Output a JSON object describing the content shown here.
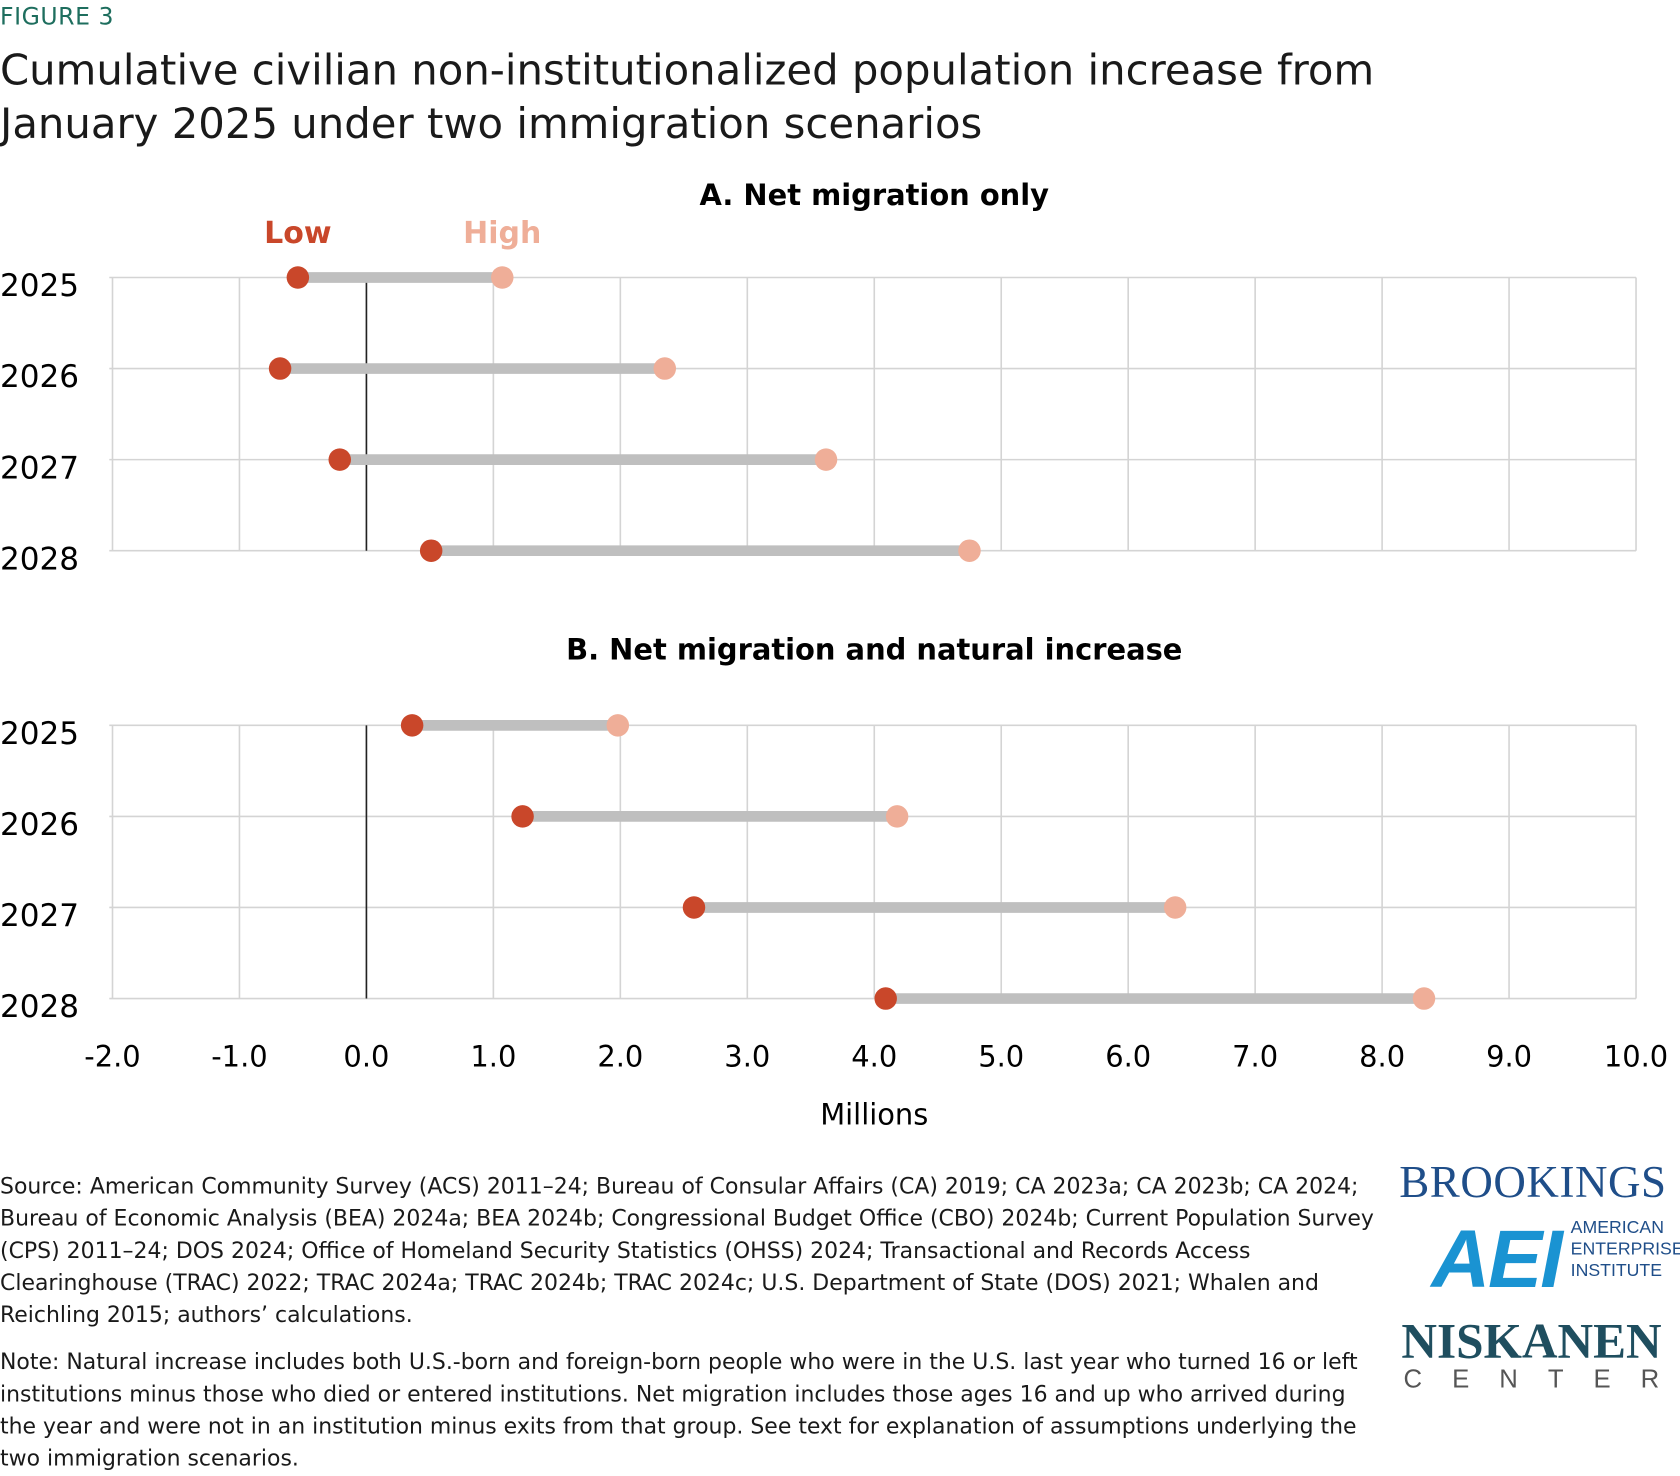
{
  "figure_label": "FIGURE 3",
  "title": "Cumulative civilian non-institutionalized population increase from January 2025 under two immigration scenarios",
  "chart_data": [
    {
      "type": "dumbbell",
      "title": "A. Net migration only",
      "categories": [
        "2025",
        "2026",
        "2027",
        "2028"
      ],
      "series": [
        {
          "name": "Low",
          "color": "#c9472a",
          "values": [
            -0.54,
            -0.68,
            -0.21,
            0.51
          ]
        },
        {
          "name": "High",
          "color": "#efae98",
          "values": [
            1.07,
            2.35,
            3.62,
            4.75
          ]
        }
      ],
      "xlim": [
        -2,
        10
      ],
      "xticks": [
        {
          "value": -2,
          "label": "-2.0"
        },
        {
          "value": -1,
          "label": "-1.0"
        },
        {
          "value": 0,
          "label": "0.0"
        },
        {
          "value": 1,
          "label": "1.0"
        },
        {
          "value": 2,
          "label": "2.0"
        },
        {
          "value": 3,
          "label": "3.0"
        },
        {
          "value": 4,
          "label": "4.0"
        },
        {
          "value": 5,
          "label": "5.0"
        },
        {
          "value": 6,
          "label": "6.0"
        },
        {
          "value": 7,
          "label": "7.0"
        },
        {
          "value": 8,
          "label": "8.0"
        },
        {
          "value": 9,
          "label": "9.0"
        },
        {
          "value": 10,
          "label": "10.0"
        }
      ],
      "grid": true
    },
    {
      "type": "dumbbell",
      "title": "B. Net migration and natural increase",
      "categories": [
        "2025",
        "2026",
        "2027",
        "2028"
      ],
      "series": [
        {
          "color": "#c9472a",
          "values": [
            0.36,
            1.23,
            2.58,
            4.09
          ]
        },
        {
          "color": "#efae98",
          "values": [
            1.98,
            4.18,
            6.37,
            8.33
          ]
        }
      ],
      "xlim": [
        -2,
        10
      ],
      "xticks": [
        {
          "value": -2,
          "label": "-2.0"
        },
        {
          "value": -1,
          "label": "-1.0"
        },
        {
          "value": 0,
          "label": "0.0"
        },
        {
          "value": 1,
          "label": "1.0"
        },
        {
          "value": 2,
          "label": "2.0"
        },
        {
          "value": 3,
          "label": "3.0"
        },
        {
          "value": 4,
          "label": "4.0"
        },
        {
          "value": 5,
          "label": "5.0"
        },
        {
          "value": 6,
          "label": "6.0"
        },
        {
          "value": 7,
          "label": "7.0"
        },
        {
          "value": 8,
          "label": "8.0"
        },
        {
          "value": 9,
          "label": "9.0"
        },
        {
          "value": 10,
          "label": "10.0"
        }
      ],
      "xlabel": "Millions",
      "grid": true
    }
  ],
  "footer": {
    "source": "Source: American Community Survey (ACS) 2011–24; Bureau of Consular Affairs (CA) 2019; CA 2023a; CA 2023b; CA 2024; Bureau of Economic Analysis (BEA) 2024a; BEA 2024b; Congressional Budget Office (CBO) 2024b; Current Population Survey (CPS) 2011–24; DOS 2024; Office of Homeland Security Statistics (OHSS) 2024; Transactional and Records Access Clearinghouse (TRAC) 2022; TRAC 2024a; TRAC 2024b; TRAC 2024c; U.S. Department of State (DOS) 2021; Whalen and Reichling 2015; authors’ calculations.",
    "note": "Note: Natural increase includes both U.S.-born and foreign-born people who were in the U.S. last year who turned 16 or left institutions minus those who died or entered institutions. Net migration includes those ages 16 and up who arrived during the year and were not in an institution minus exits from that group. See text for explanation of assumptions underlying the two immigration scenarios."
  },
  "logos": {
    "brookings": "BROOKINGS",
    "aei": "AEI",
    "aei_name": [
      "AMERICAN",
      "ENTERPRISE",
      "INSTITUTE"
    ],
    "niskanen": "NISKANEN",
    "niskanen_sub": "CENTER"
  }
}
